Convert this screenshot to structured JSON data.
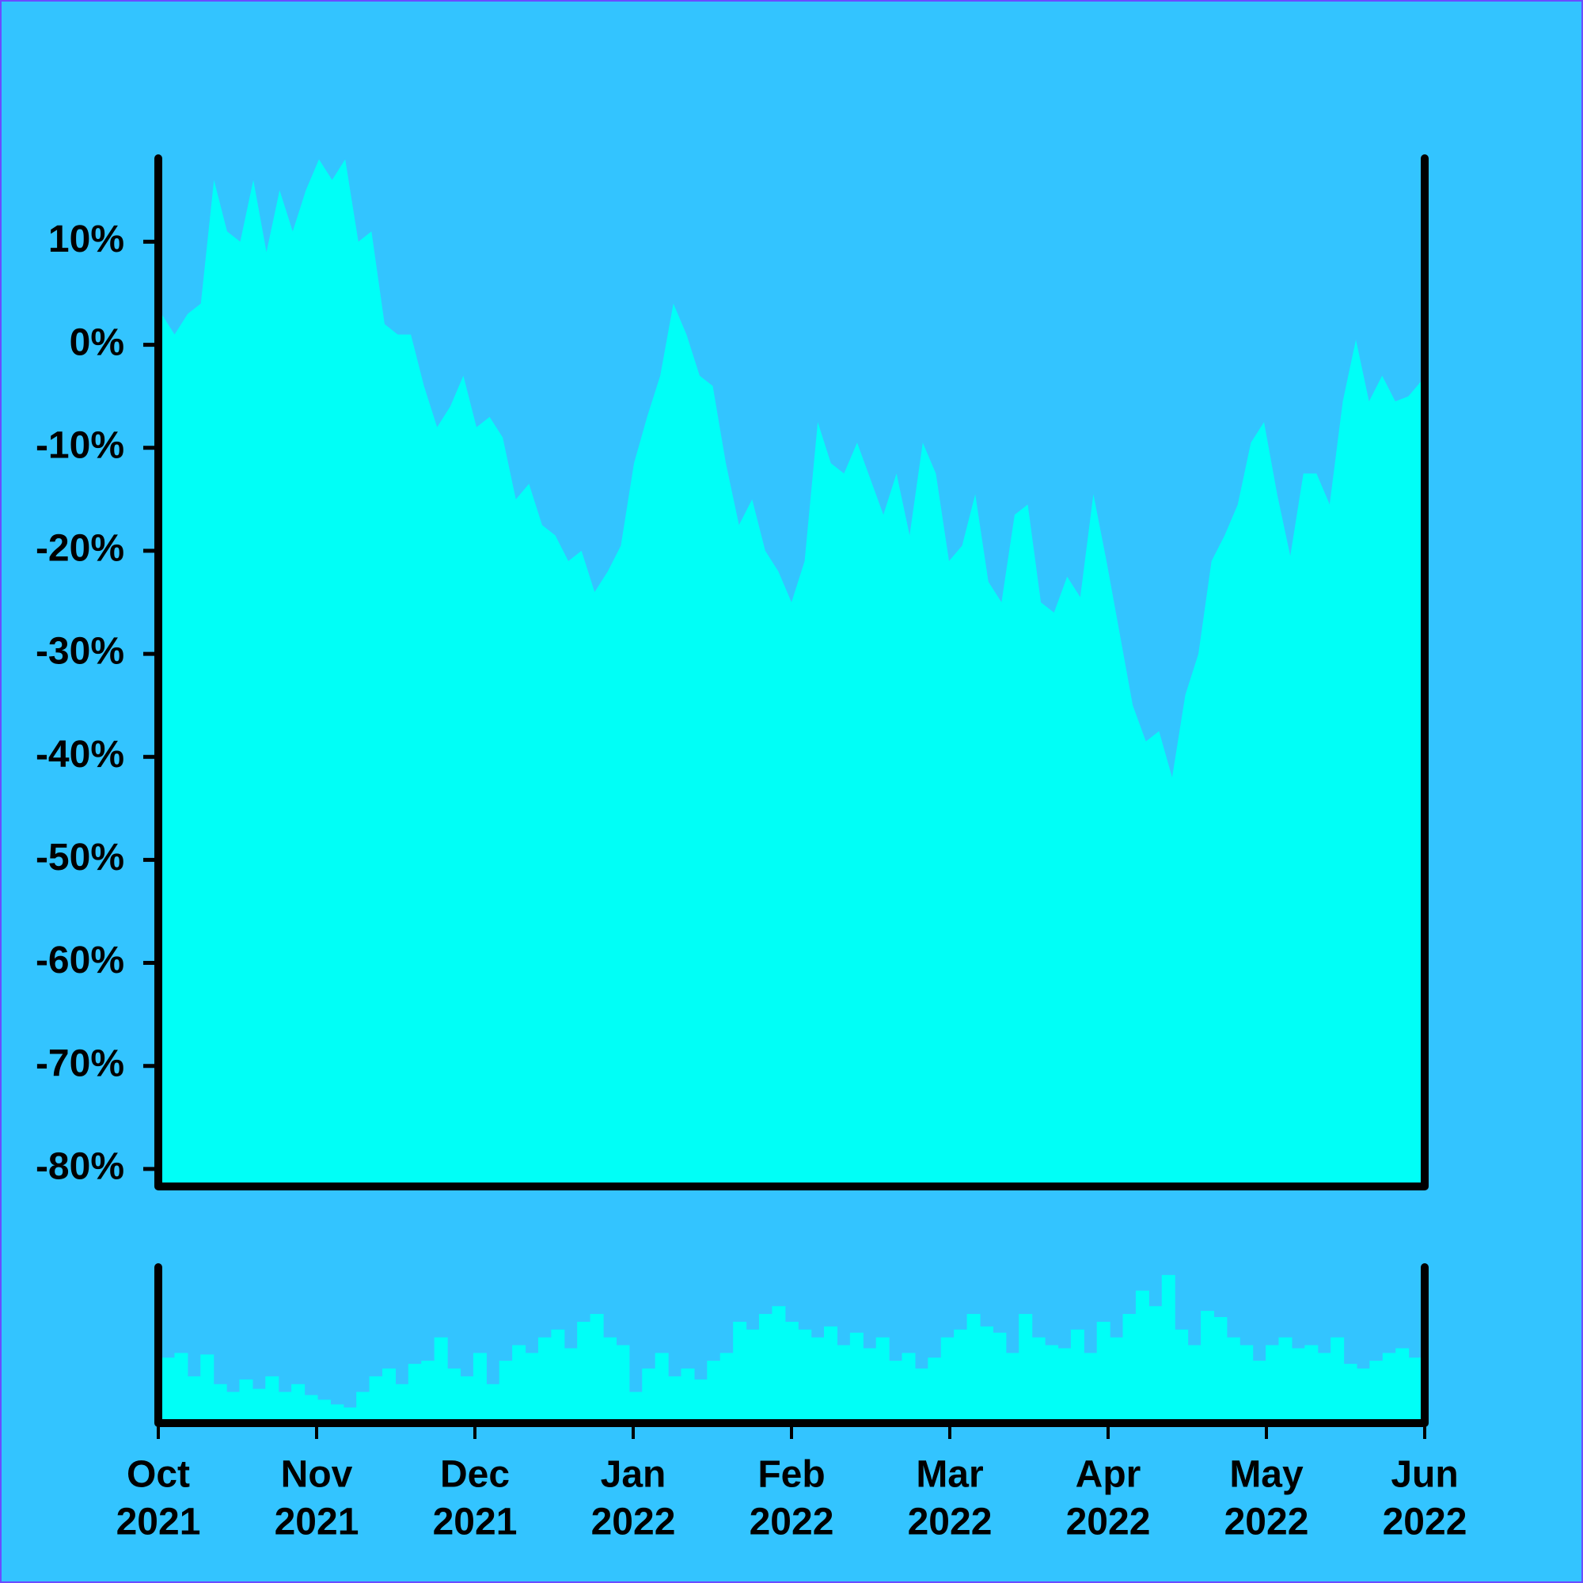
{
  "chart_data": [
    {
      "type": "area",
      "color": "#00fff7",
      "ylim": [
        -81.7,
        18.1
      ],
      "yticks": [
        {
          "value": -80,
          "label": "-80%"
        },
        {
          "value": -70,
          "label": "-70%"
        },
        {
          "value": -60,
          "label": "-60%"
        },
        {
          "value": -50,
          "label": "-50%"
        },
        {
          "value": -40,
          "label": "-40%"
        },
        {
          "value": -30,
          "label": "-30%"
        },
        {
          "value": -20,
          "label": "-20%"
        },
        {
          "value": -10,
          "label": "-10%"
        },
        {
          "value": 0,
          "label": "0%"
        },
        {
          "value": 10,
          "label": "10%"
        }
      ],
      "values": [
        3,
        1,
        3,
        4,
        16,
        11,
        10,
        16,
        9,
        15,
        11,
        15,
        18,
        16,
        18,
        10,
        11,
        2,
        1,
        1,
        -4,
        -8,
        -6,
        -3,
        -8,
        -7,
        -9,
        -15,
        -13.5,
        -17.5,
        -18.5,
        -21,
        -20,
        -24,
        -22,
        -19.5,
        -11.5,
        -7,
        -3,
        4,
        1,
        -3,
        -4,
        -11.5,
        -17.5,
        -15,
        -20,
        -22,
        -25,
        -21,
        -7.5,
        -11.5,
        -12.5,
        -9.5,
        -13,
        -16.5,
        -12.5,
        -18.5,
        -9.5,
        -12.5,
        -21,
        -19.5,
        -14.5,
        -23,
        -25,
        -16.5,
        -15.5,
        -25,
        -26,
        -22.5,
        -24.5,
        -14.5,
        -21,
        -28,
        -35,
        -38.5,
        -37.5,
        -42,
        -34,
        -30,
        -21,
        -18.5,
        -15.5,
        -9.5,
        -7.5,
        -14.5,
        -20.5,
        -12.5,
        -12.5,
        -15.5,
        -5.5,
        0.5,
        -5.5,
        -3,
        -5.5,
        -5,
        -3.5
      ]
    },
    {
      "type": "bar",
      "color": "#00fff7",
      "ylim": [
        0,
        100
      ],
      "xticks": [
        [
          "Oct",
          "2021"
        ],
        [
          "Nov",
          "2021"
        ],
        [
          "Dec",
          "2021"
        ],
        [
          "Jan",
          "2022"
        ],
        [
          "Feb",
          "2022"
        ],
        [
          "Mar",
          "2022"
        ],
        [
          "Apr",
          "2022"
        ],
        [
          "May",
          "2022"
        ],
        [
          "Jun",
          "2022"
        ]
      ],
      "values": [
        42,
        45,
        30,
        44,
        25,
        20,
        28,
        22,
        30,
        20,
        25,
        18,
        15,
        12,
        10,
        20,
        30,
        35,
        25,
        38,
        40,
        55,
        35,
        30,
        45,
        25,
        40,
        50,
        45,
        55,
        60,
        48,
        65,
        70,
        55,
        50,
        20,
        35,
        45,
        30,
        35,
        28,
        40,
        45,
        65,
        60,
        70,
        75,
        65,
        60,
        55,
        62,
        50,
        58,
        48,
        55,
        40,
        45,
        35,
        42,
        55,
        60,
        70,
        62,
        58,
        45,
        70,
        55,
        50,
        48,
        60,
        45,
        65,
        55,
        70,
        85,
        75,
        95,
        60,
        50,
        72,
        68,
        55,
        50,
        40,
        50,
        55,
        48,
        50,
        45,
        55,
        38,
        35,
        40,
        45,
        48,
        42
      ]
    }
  ]
}
